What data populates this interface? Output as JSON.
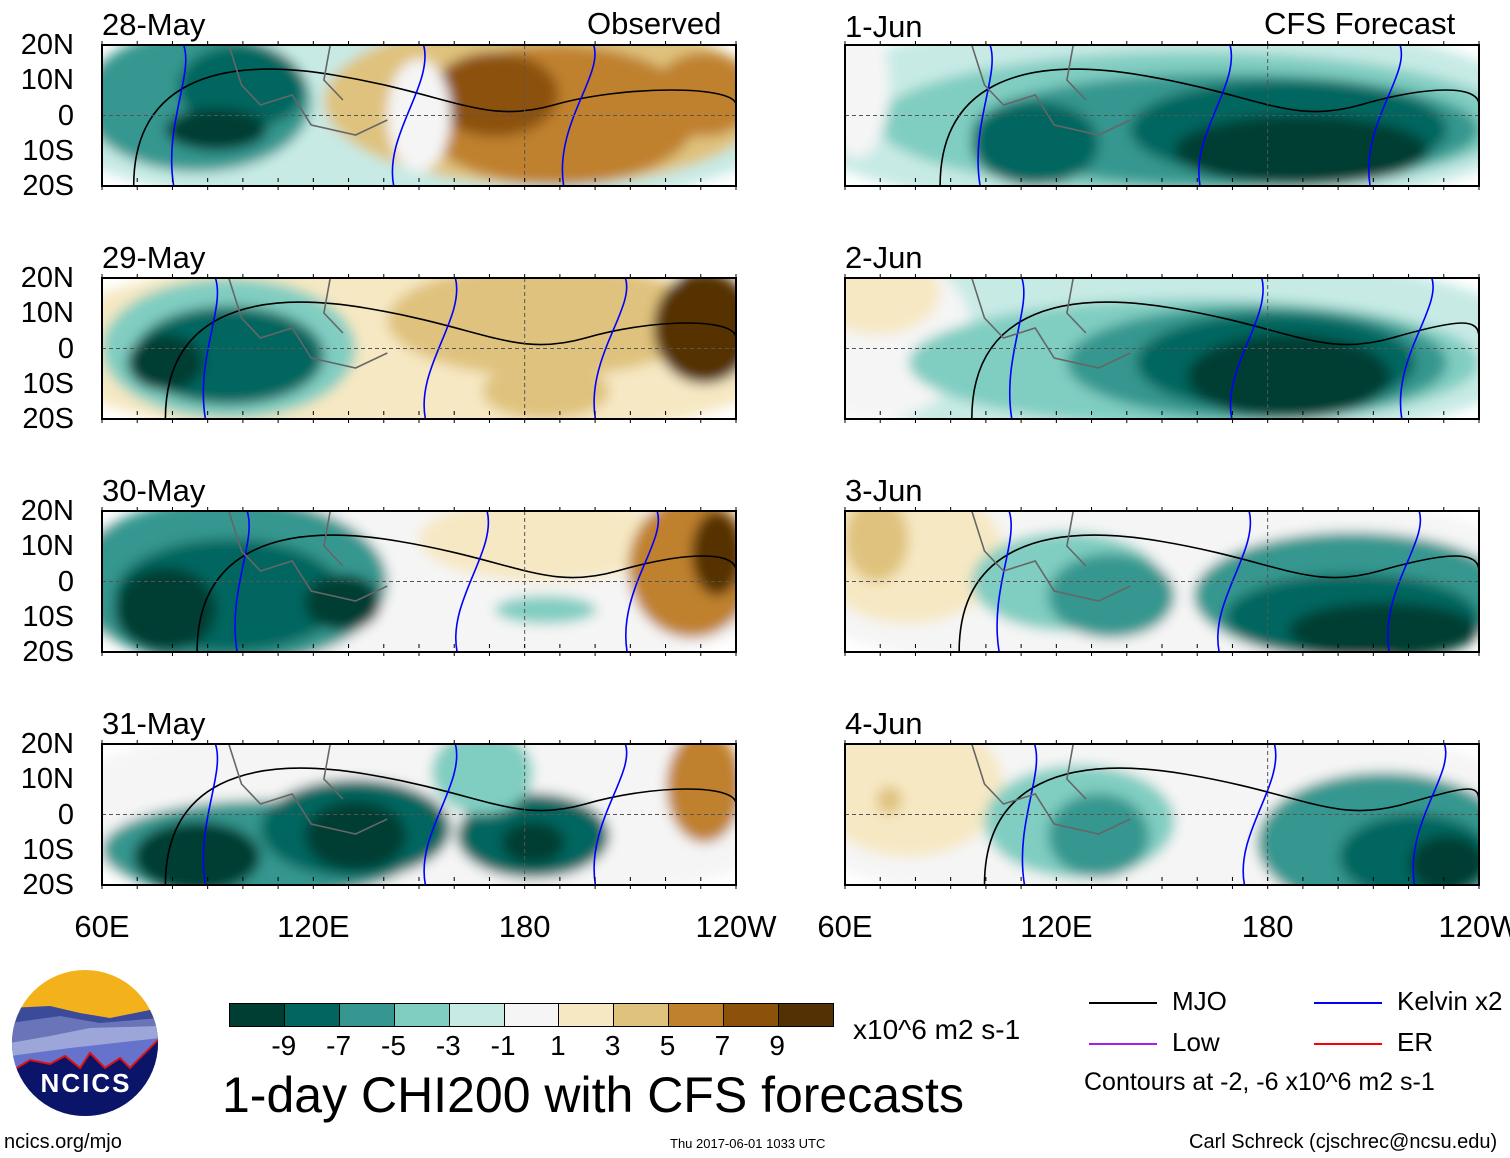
{
  "figure_title": "1-day CHI200 with CFS forecasts",
  "website": "ncics.org/mjo",
  "logo_text": "NCICS",
  "timestamp": "Thu 2017-06-01 1033 UTC",
  "author": "Carl Schreck (cjschrec@ncsu.edu)",
  "chart_data": {
    "type": "heatmap",
    "columns": [
      {
        "label": "Observed",
        "panels": [
          "28-May",
          "29-May",
          "30-May",
          "31-May"
        ]
      },
      {
        "label": "CFS Forecast",
        "panels": [
          "1-Jun",
          "2-Jun",
          "3-Jun",
          "4-Jun"
        ]
      }
    ],
    "y_ticks": [
      "20N",
      "10N",
      "0",
      "10S",
      "20S"
    ],
    "x_ticks": [
      "60E",
      "120E",
      "180",
      "120W"
    ],
    "colorbar": {
      "tick_labels": [
        "-9",
        "-7",
        "-5",
        "-3",
        "-1",
        "1",
        "3",
        "5",
        "7",
        "9"
      ],
      "colors": [
        "#003d33",
        "#03665e",
        "#35978f",
        "#80cdc1",
        "#c7eae5",
        "#f5f5f5",
        "#f6e8c3",
        "#dfc27d",
        "#bf812d",
        "#8c510a",
        "#543005"
      ],
      "units": "x10^6 m2 s-1"
    },
    "contour_legend": [
      {
        "label": "MJO",
        "color": "#000000"
      },
      {
        "label": "Kelvin x2",
        "color": "#0000ff"
      },
      {
        "label": "Low",
        "color": "#a020f0"
      },
      {
        "label": "ER",
        "color": "#ff0000"
      }
    ],
    "contour_note": "Contours at -2, -6 x10^6 m2 s-1"
  }
}
